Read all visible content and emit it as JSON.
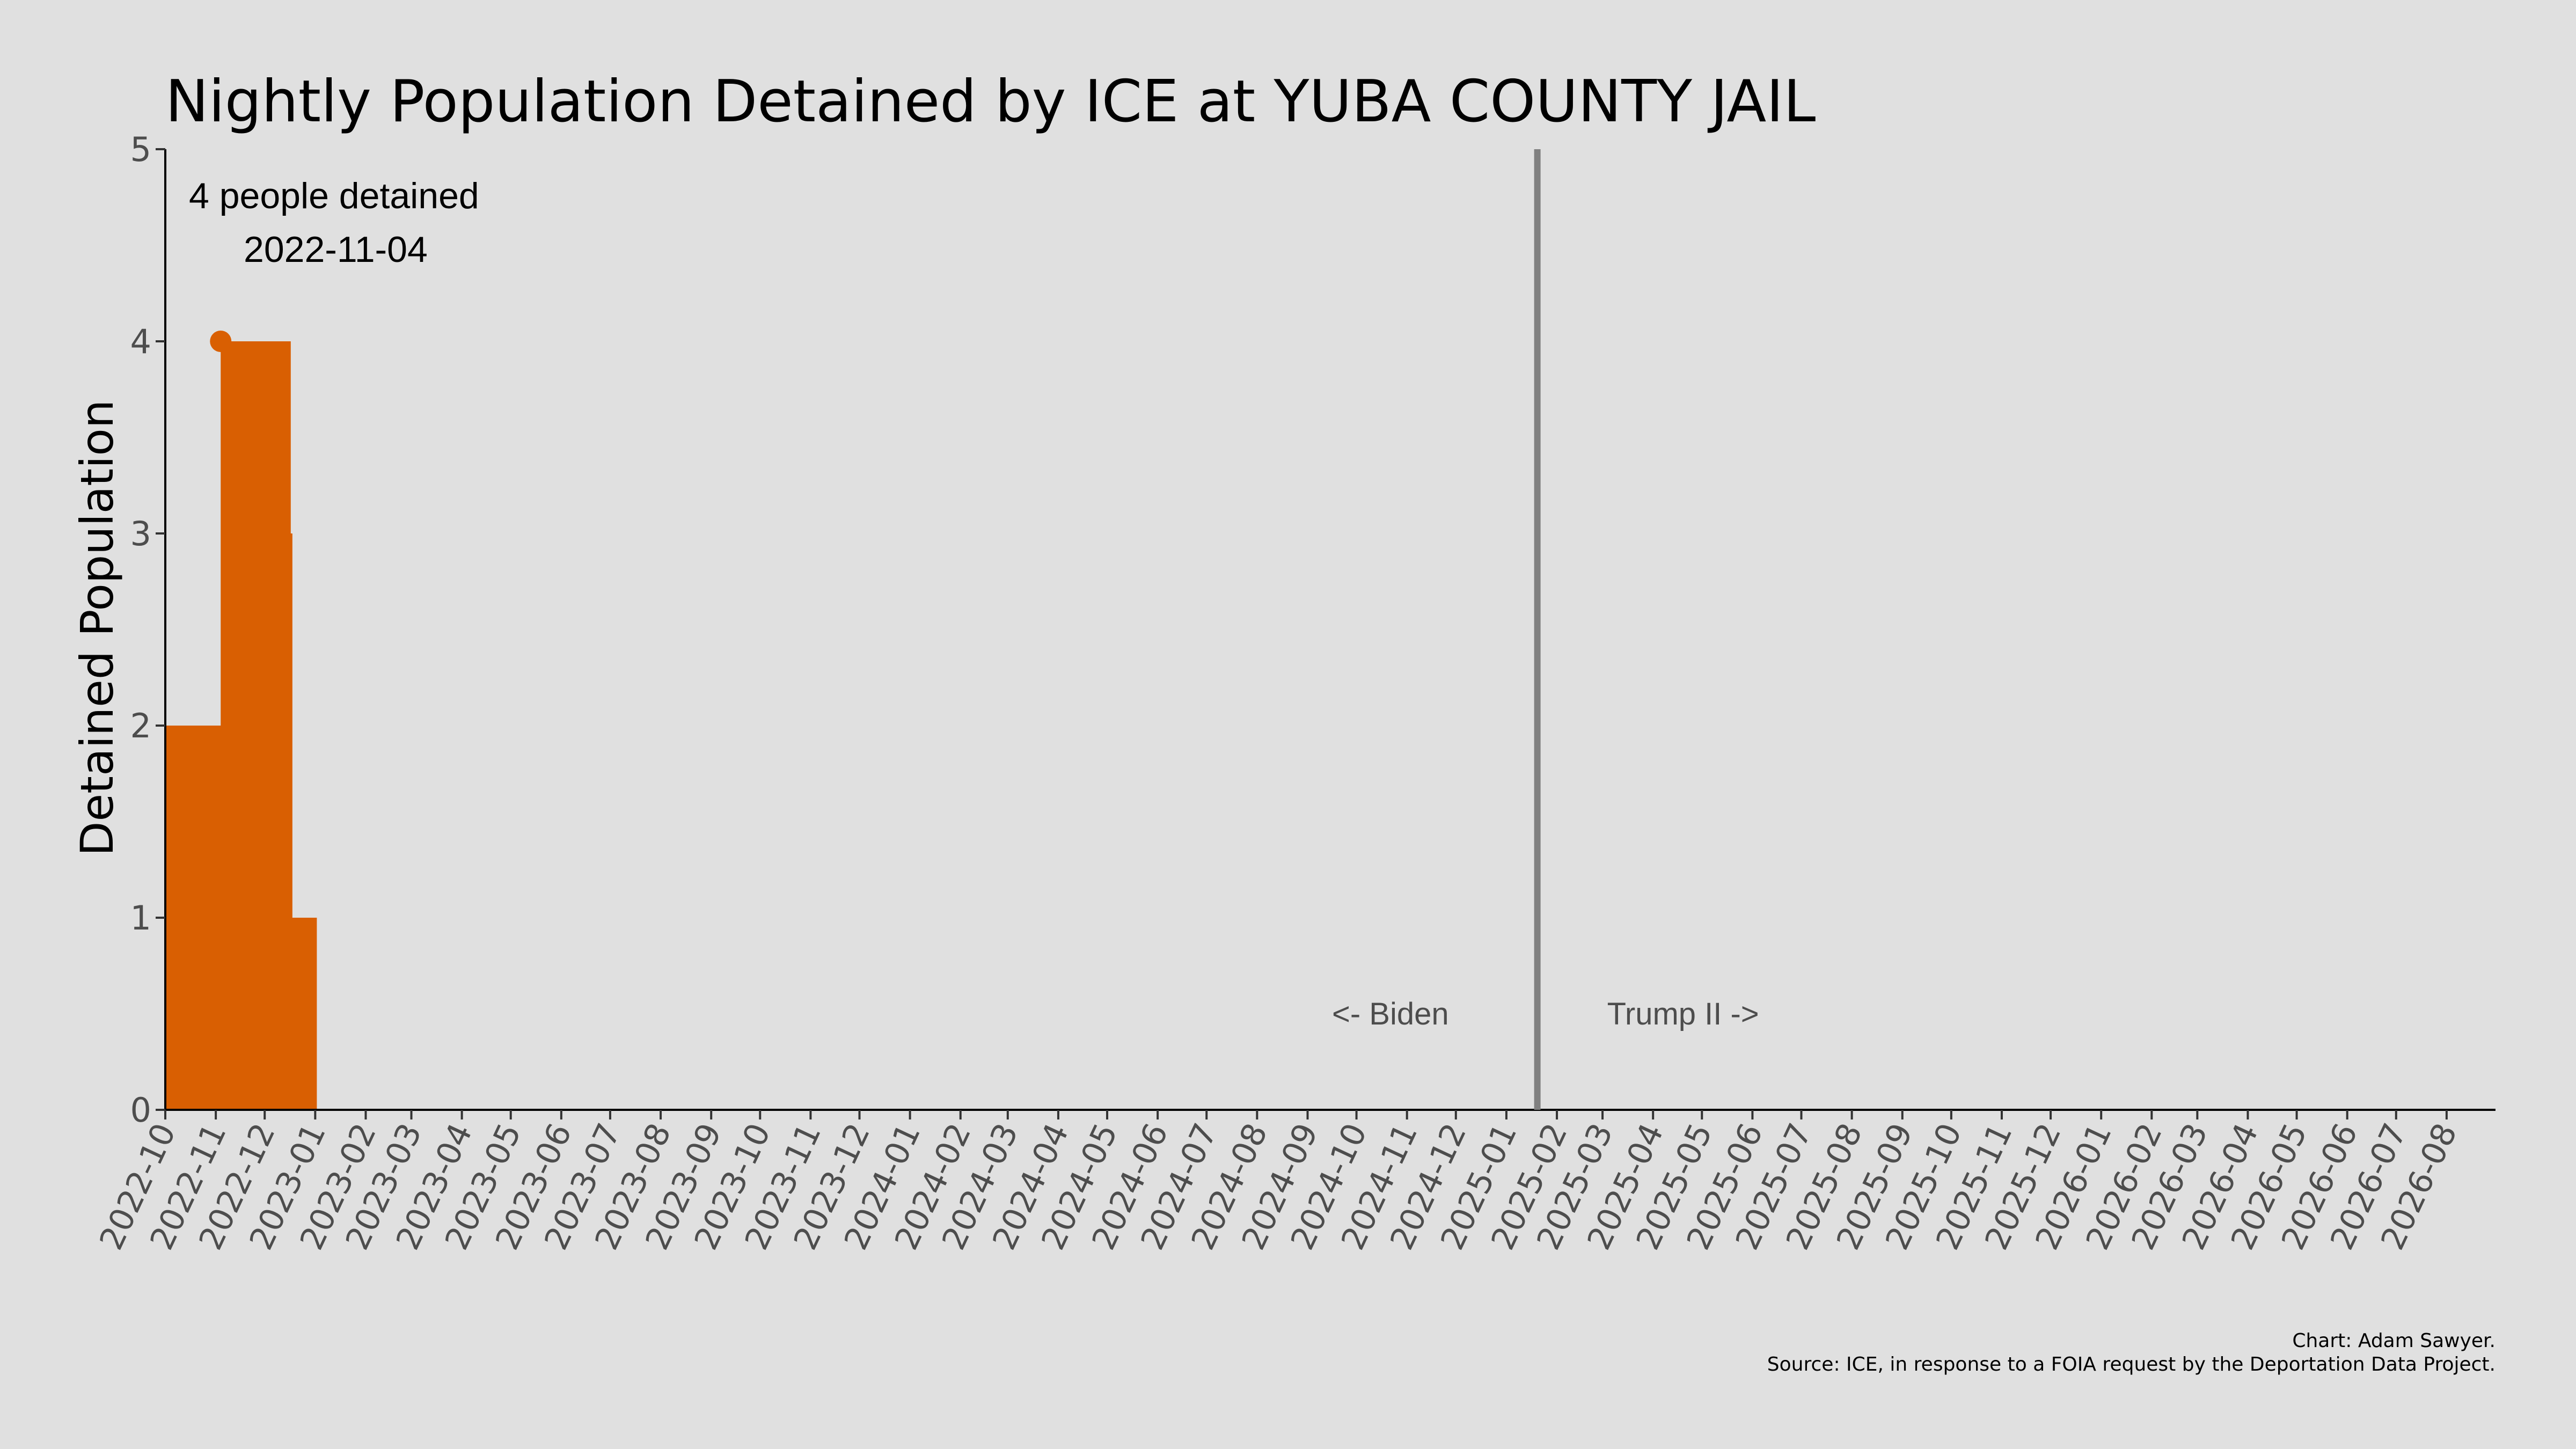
{
  "chart_data": {
    "type": "area",
    "title": "Nightly Population Detained by ICE at YUBA COUNTY JAIL",
    "xlabel": "",
    "ylabel": "Detained Population",
    "ylim": [
      0,
      5
    ],
    "yticks": [
      "0",
      "1",
      "2",
      "3",
      "4",
      "5"
    ],
    "xlim": [
      "2022-10-01",
      "2026-08-31"
    ],
    "grid": false,
    "color": "#d95f02",
    "xticks": [
      "2022-10",
      "2022-11",
      "2022-12",
      "2023-01",
      "2023-02",
      "2023-03",
      "2023-04",
      "2023-05",
      "2023-06",
      "2023-07",
      "2023-08",
      "2023-09",
      "2023-10",
      "2023-11",
      "2023-12",
      "2024-01",
      "2024-02",
      "2024-03",
      "2024-04",
      "2024-05",
      "2024-06",
      "2024-07",
      "2024-08",
      "2024-09",
      "2024-10",
      "2024-11",
      "2024-12",
      "2025-01",
      "2025-02",
      "2025-03",
      "2025-04",
      "2025-05",
      "2025-06",
      "2025-07",
      "2025-08",
      "2025-09",
      "2025-10",
      "2025-11",
      "2025-12",
      "2026-01",
      "2026-02",
      "2026-03",
      "2026-04",
      "2026-05",
      "2026-06",
      "2026-07",
      "2026-08"
    ],
    "series": [
      {
        "x": [
          "2022-10-01",
          "2022-11-04",
          "2022-12-17",
          "2022-12-18",
          "2023-01-02"
        ],
        "y": [
          2,
          4,
          3,
          1,
          0
        ]
      }
    ],
    "highlight": {
      "x": "2022-11-04",
      "y": 4
    },
    "annotations": {
      "peak_value": "4 people detained",
      "peak_date": "2022-11-04",
      "divider_date": "2025-01-20",
      "left_era": "<- Biden",
      "right_era": "Trump II ->"
    },
    "caption": {
      "line1": "Chart: Adam Sawyer.",
      "line2": "Source: ICE, in response to a FOIA request by the Deportation Data Project."
    }
  }
}
